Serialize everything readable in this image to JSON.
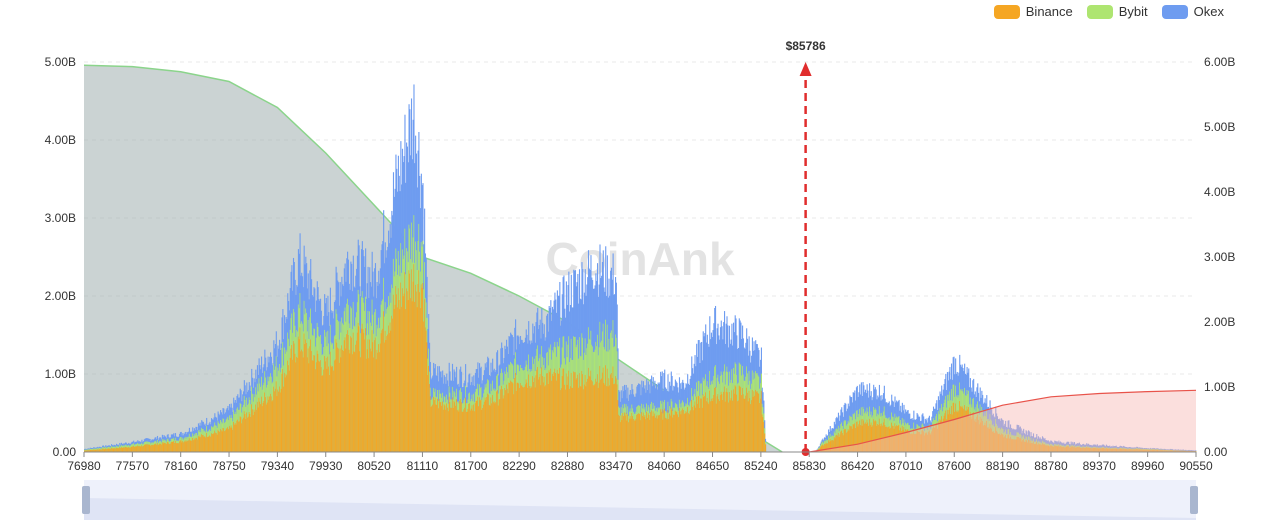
{
  "colors": {
    "binance": "#f5a623",
    "bybit": "#aee571",
    "okex": "#6e9cf0",
    "short_curve": "#e8534a",
    "long_area": "#a9b5b5",
    "long_line": "#8bd48b",
    "marker": "#e02d2d",
    "watermark": "#e3e3e3"
  },
  "watermark": "CoinAnk",
  "legend": [
    {
      "label": "Binance",
      "color": "#f5a623"
    },
    {
      "label": "Bybit",
      "color": "#aee571"
    },
    {
      "label": "Okex",
      "color": "#6e9cf0"
    }
  ],
  "chart_data": {
    "type": "bar",
    "current_price": 85786,
    "current_price_label": "$85786",
    "x_range": [
      76980,
      90550
    ],
    "x_ticks": [
      "76980",
      "77570",
      "78160",
      "78750",
      "79340",
      "79930",
      "80520",
      "81110",
      "81700",
      "82290",
      "82880",
      "83470",
      "84060",
      "84650",
      "85240",
      "85830",
      "86420",
      "87010",
      "87600",
      "88190",
      "88780",
      "89370",
      "89960",
      "90550"
    ],
    "y_left_ticks": [
      "0.00",
      "1.00B",
      "2.00B",
      "3.00B",
      "4.00B",
      "5.00B"
    ],
    "y_left_range": [
      0,
      5
    ],
    "y_right_ticks": [
      "0.00",
      "1.00B",
      "2.00B",
      "3.00B",
      "4.00B",
      "5.00B",
      "6.00B"
    ],
    "y_right_range": [
      0,
      6
    ],
    "series": [
      {
        "name": "Binance",
        "color": "#f5a623",
        "points": [
          [
            76980,
            0.02
          ],
          [
            77570,
            0.07
          ],
          [
            78160,
            0.14
          ],
          [
            78750,
            0.3
          ],
          [
            79340,
            0.85
          ],
          [
            79600,
            1.45
          ],
          [
            79930,
            1.1
          ],
          [
            80200,
            1.55
          ],
          [
            80520,
            1.4
          ],
          [
            80800,
            2.0
          ],
          [
            81000,
            2.3
          ],
          [
            81110,
            2.2
          ],
          [
            81200,
            0.65
          ],
          [
            81700,
            0.62
          ],
          [
            82000,
            0.7
          ],
          [
            82290,
            0.95
          ],
          [
            82600,
            1.0
          ],
          [
            82880,
            0.95
          ],
          [
            83200,
            1.0
          ],
          [
            83470,
            1.0
          ],
          [
            83500,
            0.45
          ],
          [
            84060,
            0.5
          ],
          [
            84300,
            0.55
          ],
          [
            84650,
            0.75
          ],
          [
            85000,
            0.78
          ],
          [
            85240,
            0.7
          ],
          [
            85300,
            0.0
          ],
          [
            85900,
            0.0
          ],
          [
            86000,
            0.1
          ],
          [
            86420,
            0.38
          ],
          [
            86700,
            0.4
          ],
          [
            87010,
            0.28
          ],
          [
            87300,
            0.25
          ],
          [
            87600,
            0.62
          ],
          [
            87800,
            0.5
          ],
          [
            88190,
            0.22
          ],
          [
            88500,
            0.14
          ],
          [
            88780,
            0.08
          ],
          [
            89370,
            0.05
          ],
          [
            89960,
            0.03
          ],
          [
            90550,
            0.01
          ]
        ]
      },
      {
        "name": "Bybit",
        "color": "#aee571",
        "points": [
          [
            76980,
            0.03
          ],
          [
            77570,
            0.1
          ],
          [
            78160,
            0.18
          ],
          [
            78750,
            0.42
          ],
          [
            79340,
            1.15
          ],
          [
            79600,
            1.85
          ],
          [
            79930,
            1.4
          ],
          [
            80200,
            1.95
          ],
          [
            80520,
            1.75
          ],
          [
            80800,
            2.45
          ],
          [
            81000,
            2.9
          ],
          [
            81110,
            2.75
          ],
          [
            81200,
            0.75
          ],
          [
            81700,
            0.76
          ],
          [
            82000,
            0.88
          ],
          [
            82290,
            1.2
          ],
          [
            82600,
            1.25
          ],
          [
            82880,
            1.35
          ],
          [
            83200,
            1.5
          ],
          [
            83470,
            1.55
          ],
          [
            83500,
            0.55
          ],
          [
            84060,
            0.6
          ],
          [
            84300,
            0.65
          ],
          [
            84650,
            1.0
          ],
          [
            85000,
            1.05
          ],
          [
            85240,
            0.9
          ],
          [
            85300,
            0.0
          ],
          [
            85900,
            0.0
          ],
          [
            86000,
            0.14
          ],
          [
            86420,
            0.52
          ],
          [
            86700,
            0.55
          ],
          [
            87010,
            0.36
          ],
          [
            87300,
            0.32
          ],
          [
            87600,
            0.85
          ],
          [
            87800,
            0.68
          ],
          [
            88190,
            0.29
          ],
          [
            88500,
            0.18
          ],
          [
            88780,
            0.1
          ],
          [
            89370,
            0.06
          ],
          [
            89960,
            0.04
          ],
          [
            90550,
            0.01
          ]
        ]
      },
      {
        "name": "Okex",
        "color": "#6e9cf0",
        "points": [
          [
            76980,
            0.04
          ],
          [
            77570,
            0.13
          ],
          [
            78160,
            0.24
          ],
          [
            78750,
            0.55
          ],
          [
            79340,
            1.45
          ],
          [
            79600,
            2.55
          ],
          [
            79930,
            1.8
          ],
          [
            80200,
            2.55
          ],
          [
            80520,
            2.3
          ],
          [
            80800,
            3.6
          ],
          [
            81000,
            4.5
          ],
          [
            81110,
            3.5
          ],
          [
            81200,
            1.05
          ],
          [
            81700,
            1.0
          ],
          [
            82000,
            1.15
          ],
          [
            82290,
            1.6
          ],
          [
            82600,
            1.7
          ],
          [
            82880,
            2.1
          ],
          [
            83200,
            2.45
          ],
          [
            83470,
            2.3
          ],
          [
            83500,
            0.75
          ],
          [
            84060,
            0.95
          ],
          [
            84300,
            0.9
          ],
          [
            84650,
            1.7
          ],
          [
            85000,
            1.55
          ],
          [
            85240,
            1.2
          ],
          [
            85300,
            0.0
          ],
          [
            85900,
            0.0
          ],
          [
            86000,
            0.18
          ],
          [
            86420,
            0.82
          ],
          [
            86700,
            0.8
          ],
          [
            87010,
            0.52
          ],
          [
            87300,
            0.42
          ],
          [
            87600,
            1.2
          ],
          [
            87800,
            0.92
          ],
          [
            88190,
            0.4
          ],
          [
            88500,
            0.25
          ],
          [
            88780,
            0.14
          ],
          [
            89370,
            0.09
          ],
          [
            89960,
            0.05
          ],
          [
            90550,
            0.02
          ]
        ]
      },
      {
        "name": "",
        "color": "#a9b5b5",
        "points": [
          [
            76980,
            5.95
          ],
          [
            77570,
            5.93
          ],
          [
            78160,
            5.85
          ],
          [
            78750,
            5.7
          ],
          [
            79340,
            5.3
          ],
          [
            79930,
            4.6
          ],
          [
            80520,
            3.8
          ],
          [
            81110,
            3.0
          ],
          [
            81700,
            2.75
          ],
          [
            82290,
            2.4
          ],
          [
            82880,
            2.0
          ],
          [
            83470,
            1.45
          ],
          [
            84060,
            0.95
          ],
          [
            84650,
            0.6
          ],
          [
            85240,
            0.2
          ],
          [
            85500,
            0.0
          ]
        ]
      },
      {
        "name": "",
        "color": "#e8534a",
        "points": [
          [
            85830,
            0.0
          ],
          [
            86420,
            0.12
          ],
          [
            87010,
            0.3
          ],
          [
            87600,
            0.5
          ],
          [
            88190,
            0.72
          ],
          [
            88780,
            0.85
          ],
          [
            89370,
            0.9
          ],
          [
            89960,
            0.93
          ],
          [
            90550,
            0.95
          ]
        ]
      }
    ]
  }
}
